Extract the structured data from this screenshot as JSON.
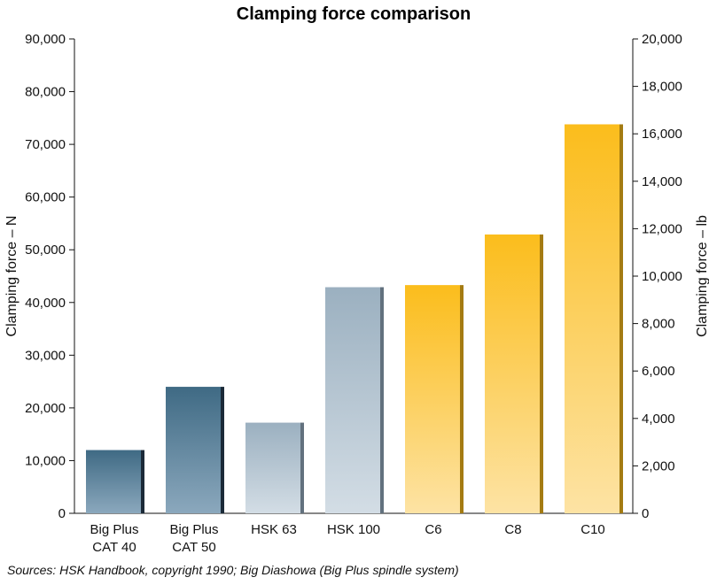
{
  "chart_data": {
    "type": "bar",
    "title": "Clamping force comparison",
    "ylabel": "Clamping force – N",
    "y2label": "Clamping force – lb",
    "ylim": [
      0,
      90000
    ],
    "y2lim": [
      0,
      20000
    ],
    "yticks": [
      "0",
      "10,000",
      "20,000",
      "30,000",
      "40,000",
      "50,000",
      "60,000",
      "70,000",
      "80,000",
      "90,000"
    ],
    "y2ticks": [
      "0",
      "2,000",
      "4,000",
      "6,000",
      "8,000",
      "10,000",
      "12,000",
      "14,000",
      "16,000",
      "18,000",
      "20,000"
    ],
    "categories": [
      [
        "Big Plus",
        "CAT 40"
      ],
      [
        "Big Plus",
        "CAT 50"
      ],
      [
        "HSK 63"
      ],
      [
        "HSK 100"
      ],
      [
        "C6"
      ],
      [
        "C8"
      ],
      [
        "C10"
      ]
    ],
    "values": [
      12000,
      24000,
      17200,
      42900,
      43300,
      52900,
      73800
    ],
    "colors": {
      "big_plus": [
        "#3f6a84",
        "#8ba8bd"
      ],
      "hsk": [
        "#9bb0c0",
        "#d3dde5"
      ],
      "capto": [
        "#fbbd1c",
        "#fde3a4"
      ],
      "big_plus_side": "#1b2a38",
      "hsk_side": "#62717e",
      "capto_side": "#a47b12"
    },
    "grid": false,
    "legend": "none"
  },
  "source": "Sources: HSK Handbook, copyright 1990; Big Diashowa (Big Plus spindle system)"
}
